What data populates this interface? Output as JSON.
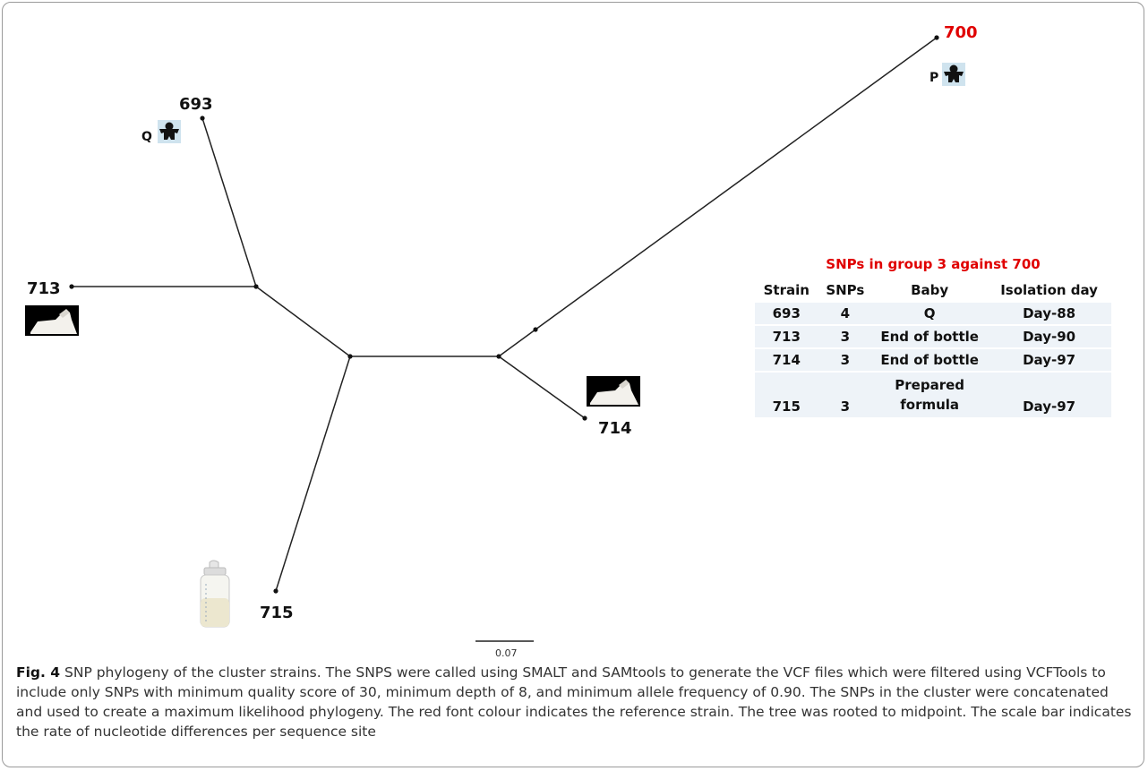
{
  "tree": {
    "tips": [
      {
        "id": "700",
        "label": "700",
        "reference": true
      },
      {
        "id": "693",
        "label": "693",
        "reference": false
      },
      {
        "id": "713",
        "label": "713",
        "reference": false
      },
      {
        "id": "714",
        "label": "714",
        "reference": false
      },
      {
        "id": "715",
        "label": "715",
        "reference": false
      }
    ],
    "icons": [
      {
        "tip": "700",
        "letter": "P",
        "kind": "baby"
      },
      {
        "tip": "693",
        "letter": "Q",
        "kind": "baby"
      },
      {
        "tip": "713",
        "letter": "",
        "kind": "bottle-end"
      },
      {
        "tip": "714",
        "letter": "",
        "kind": "bottle-end"
      },
      {
        "tip": "715",
        "letter": "",
        "kind": "feeding-bottle"
      }
    ],
    "scale_bar": "0.07",
    "reference_color": "#e00000"
  },
  "snp_table": {
    "title": "SNPs in group 3 against 700",
    "headers": [
      "Strain",
      "SNPs",
      "Baby",
      "Isolation day"
    ],
    "rows": [
      [
        "693",
        "4",
        "Q",
        "Day-88"
      ],
      [
        "713",
        "3",
        "End of bottle",
        "Day-90"
      ],
      [
        "714",
        "3",
        "End of bottle",
        "Day-97"
      ],
      [
        "715",
        "3",
        "Prepared formula",
        "Day-97"
      ]
    ]
  },
  "caption": {
    "label": "Fig. 4",
    "text": "SNP phylogeny of the cluster strains. The SNPS were called using SMALT and SAMtools to generate the VCF files which were filtered using VCFTools to include only SNPs with minimum quality score of 30, minimum depth of 8, and minimum allele frequency of 0.90. The SNPs in the cluster were concatenated and used to create a maximum likelihood phylogeny. The red font colour indicates the reference strain. The tree was rooted to midpoint. The scale bar indicates the rate of nucleotide differences per sequence site"
  }
}
